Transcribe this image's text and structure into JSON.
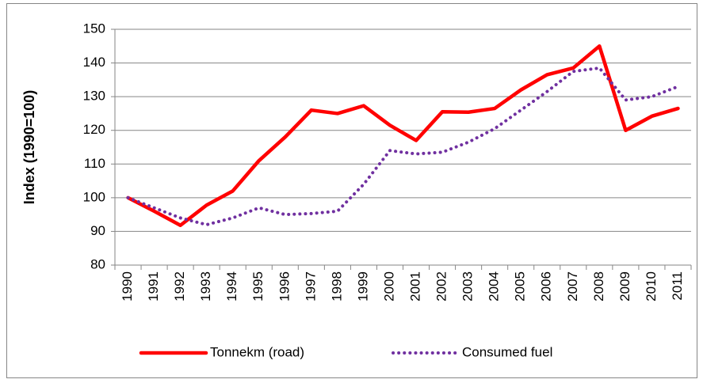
{
  "chart_data": {
    "type": "line",
    "y_label": "Index (1990=100)",
    "categories": [
      "1990",
      "1991",
      "1992",
      "1993",
      "1994",
      "1995",
      "1996",
      "1997",
      "1998",
      "1999",
      "2000",
      "2001",
      "2002",
      "2003",
      "2004",
      "2005",
      "2006",
      "2007",
      "2008",
      "2009",
      "2010",
      "2011"
    ],
    "series": [
      {
        "name": "Tonnekm (road)",
        "color": "#ff0000",
        "style": "solid",
        "values": [
          100,
          96,
          91.8,
          97.8,
          102,
          111,
          118,
          126,
          125,
          127.3,
          121.5,
          117,
          125.5,
          125.4,
          126.5,
          132,
          136.5,
          138.5,
          145,
          120,
          124.2,
          126.5
        ]
      },
      {
        "name": "Consumed fuel",
        "color": "#7030a0",
        "style": "dotted",
        "values": [
          100,
          97,
          94,
          92,
          94,
          97,
          95,
          95.3,
          96,
          104,
          114,
          113,
          113.5,
          116.5,
          120.5,
          126,
          131.5,
          137.5,
          138.5,
          129,
          130,
          133
        ]
      }
    ],
    "ylim": [
      80,
      150
    ],
    "yticks": [
      80,
      90,
      100,
      110,
      120,
      130,
      140,
      150
    ],
    "grid": true,
    "legend": "bottom"
  }
}
